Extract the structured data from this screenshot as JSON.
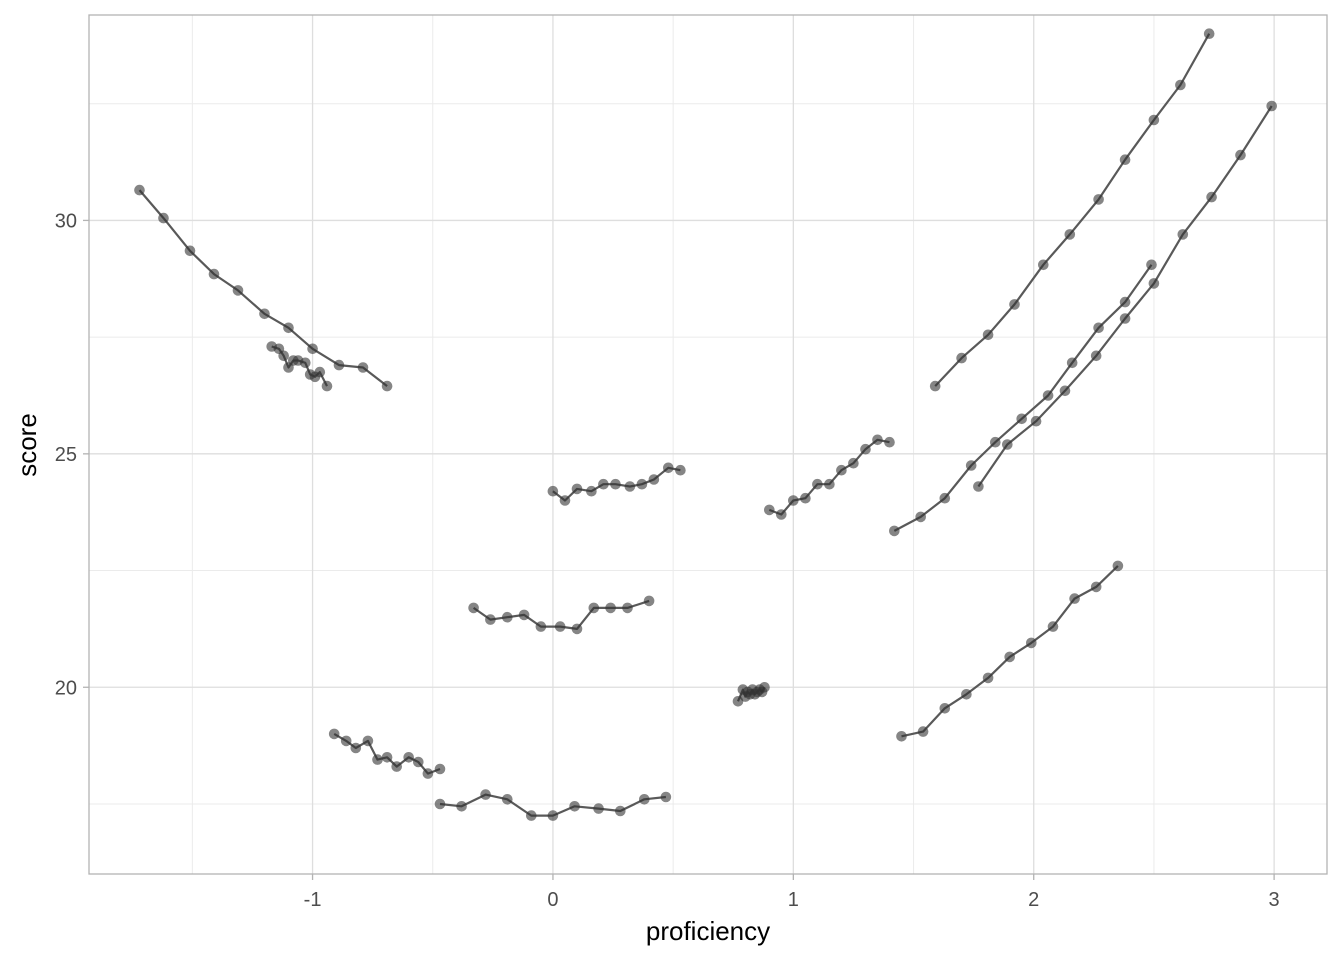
{
  "chart_data": {
    "type": "line",
    "title": "",
    "xlabel": "proficiency",
    "ylabel": "score",
    "xlim": [
      -1.93,
      3.22
    ],
    "ylim": [
      16.0,
      34.4
    ],
    "x_ticks": [
      -1,
      0,
      1,
      2,
      3
    ],
    "x_tick_labels": [
      "-1",
      "0",
      "1",
      "2",
      "3"
    ],
    "y_ticks": [
      20,
      25,
      30
    ],
    "y_tick_labels": [
      "20",
      "25",
      "30"
    ],
    "x_minor_gridlines": [
      -1.5,
      -0.5,
      0.5,
      1.5,
      2.5
    ],
    "y_minor_gridlines": [
      17.5,
      22.5,
      27.5,
      32.5
    ],
    "grid": true,
    "theme": "light",
    "line_color": "#595959",
    "point_color": "#333333",
    "point_opacity": 0.6,
    "series": [
      {
        "x": [
          -1.72,
          -1.62,
          -1.51,
          -1.41,
          -1.31,
          -1.2,
          -1.1,
          -1.0,
          -0.89,
          -0.79,
          -0.69
        ],
        "y": [
          30.65,
          30.05,
          29.35,
          28.85,
          28.5,
          28.0,
          27.7,
          27.25,
          26.9,
          26.85,
          26.45
        ]
      },
      {
        "x": [
          -1.17,
          -1.14,
          -1.12,
          -1.1,
          -1.08,
          -1.06,
          -1.03,
          -1.01,
          -0.99,
          -0.97,
          -0.94
        ],
        "y": [
          27.3,
          27.25,
          27.1,
          26.85,
          27.0,
          27.0,
          26.95,
          26.7,
          26.65,
          26.75,
          26.45
        ]
      },
      {
        "x": [
          -0.91,
          -0.86,
          -0.82,
          -0.77,
          -0.73,
          -0.69,
          -0.65,
          -0.6,
          -0.56,
          -0.52,
          -0.47
        ],
        "y": [
          19.0,
          18.85,
          18.7,
          18.85,
          18.45,
          18.5,
          18.3,
          18.5,
          18.4,
          18.15,
          18.25
        ]
      },
      {
        "x": [
          -0.47,
          -0.38,
          -0.28,
          -0.19,
          -0.09,
          0.0,
          0.09,
          0.19,
          0.28,
          0.38,
          0.47
        ],
        "y": [
          17.5,
          17.45,
          17.7,
          17.6,
          17.25,
          17.25,
          17.45,
          17.4,
          17.35,
          17.6,
          17.65
        ]
      },
      {
        "x": [
          -0.33,
          -0.26,
          -0.19,
          -0.12,
          -0.05,
          0.03,
          0.1,
          0.17,
          0.24,
          0.31,
          0.4
        ],
        "y": [
          21.7,
          21.45,
          21.5,
          21.55,
          21.3,
          21.3,
          21.25,
          21.7,
          21.7,
          21.7,
          21.85
        ]
      },
      {
        "x": [
          0.0,
          0.05,
          0.1,
          0.16,
          0.21,
          0.26,
          0.32,
          0.37,
          0.42,
          0.48,
          0.53
        ],
        "y": [
          24.2,
          24.0,
          24.25,
          24.2,
          24.35,
          24.35,
          24.3,
          24.35,
          24.45,
          24.7,
          24.65
        ]
      },
      {
        "x": [
          0.77,
          0.79,
          0.8,
          0.81,
          0.82,
          0.83,
          0.84,
          0.85,
          0.86,
          0.87,
          0.88
        ],
        "y": [
          19.7,
          19.95,
          19.8,
          19.9,
          19.85,
          19.95,
          19.85,
          19.9,
          19.95,
          19.9,
          20.0
        ]
      },
      {
        "x": [
          0.9,
          0.95,
          1.0,
          1.05,
          1.1,
          1.15,
          1.2,
          1.25,
          1.3,
          1.35,
          1.4
        ],
        "y": [
          23.8,
          23.7,
          24.0,
          24.05,
          24.35,
          24.35,
          24.65,
          24.8,
          25.1,
          25.3,
          25.25
        ]
      },
      {
        "x": [
          1.59,
          1.7,
          1.81,
          1.92,
          2.04,
          2.15,
          2.27,
          2.38,
          2.5,
          2.61,
          2.73
        ],
        "y": [
          26.45,
          27.05,
          27.55,
          28.2,
          29.05,
          29.7,
          30.45,
          31.3,
          32.15,
          32.9,
          34.0
        ]
      },
      {
        "x": [
          1.42,
          1.53,
          1.63,
          1.74,
          1.84,
          1.95,
          2.06,
          2.16,
          2.27,
          2.38,
          2.49
        ],
        "y": [
          23.35,
          23.65,
          24.05,
          24.75,
          25.25,
          25.75,
          26.25,
          26.95,
          27.7,
          28.25,
          29.05
        ]
      },
      {
        "x": [
          1.77,
          1.89,
          2.01,
          2.13,
          2.26,
          2.38,
          2.5,
          2.62,
          2.74,
          2.86,
          2.99
        ],
        "y": [
          24.3,
          25.2,
          25.7,
          26.35,
          27.1,
          27.9,
          28.65,
          29.7,
          30.5,
          31.4,
          32.45
        ]
      },
      {
        "x": [
          1.45,
          1.54,
          1.63,
          1.72,
          1.81,
          1.9,
          1.99,
          2.08,
          2.17,
          2.26,
          2.35
        ],
        "y": [
          18.95,
          19.05,
          19.55,
          19.85,
          20.2,
          20.65,
          20.95,
          21.3,
          21.9,
          22.15,
          22.6
        ]
      }
    ]
  }
}
